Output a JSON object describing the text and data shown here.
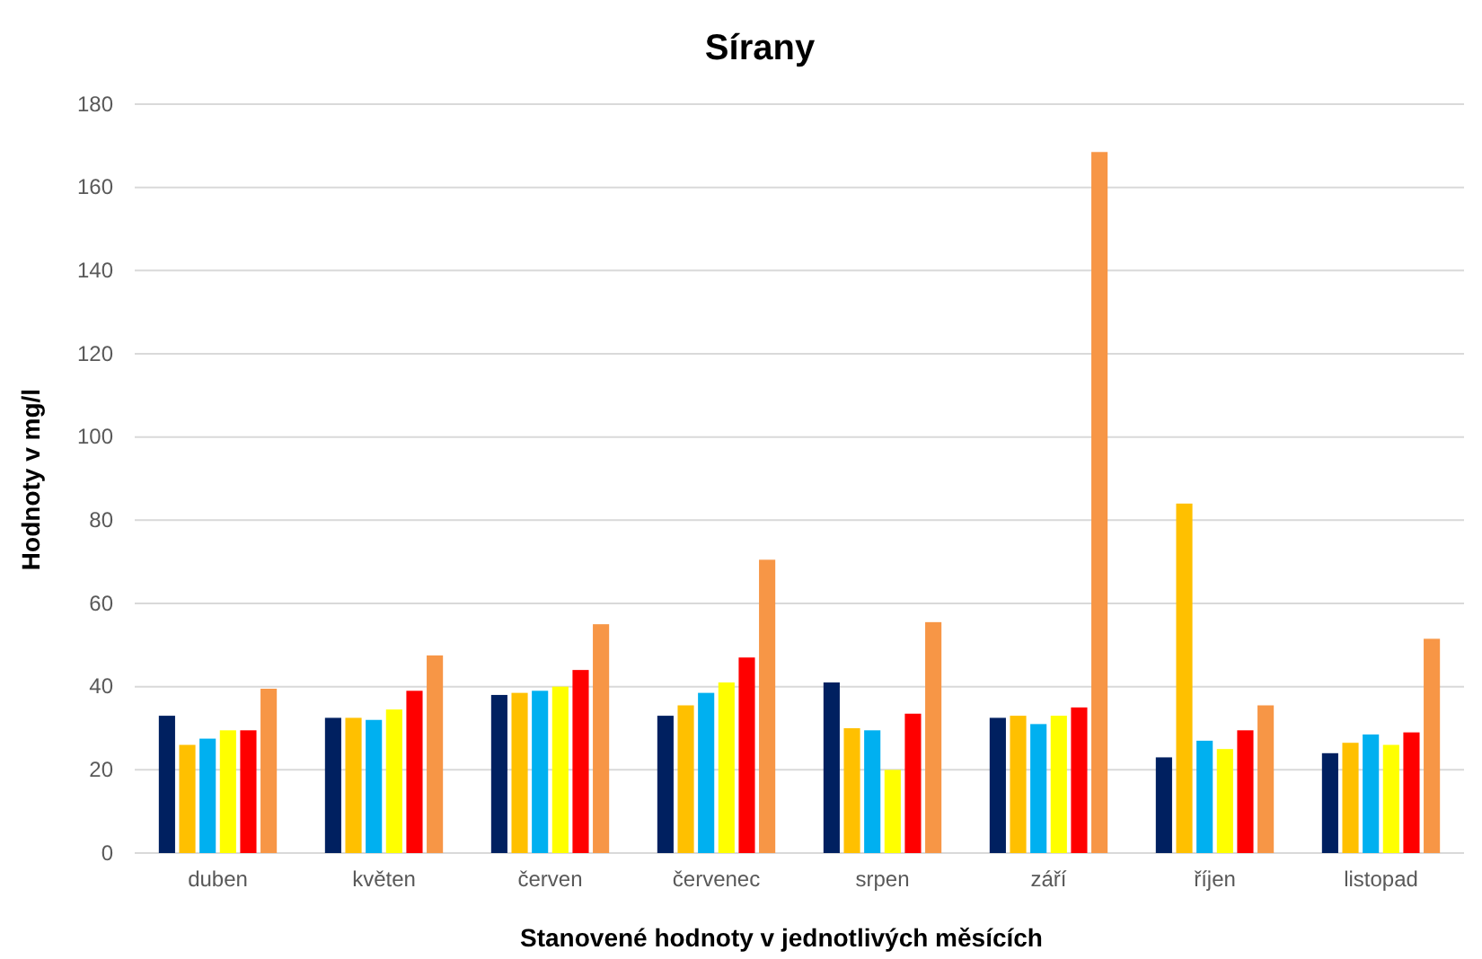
{
  "chart_data": {
    "type": "bar",
    "title": "Sírany",
    "xlabel": "Stanovené hodnoty v jednotlivých měsících",
    "ylabel": "Hodnoty v mg/l",
    "categories": [
      "duben",
      "květen",
      "červen",
      "červenec",
      "srpen",
      "září",
      "říjen",
      "listopad"
    ],
    "series": [
      {
        "color": "#002060",
        "values": [
          33,
          32.5,
          38,
          33,
          41,
          32.5,
          23,
          24
        ]
      },
      {
        "color": "#ffc000",
        "values": [
          26,
          32.5,
          38.5,
          35.5,
          30,
          33,
          84,
          26.5
        ]
      },
      {
        "color": "#00b0f0",
        "values": [
          27.5,
          32,
          39,
          38.5,
          29.5,
          31,
          27,
          28.5
        ]
      },
      {
        "color": "#ffff00",
        "values": [
          29.5,
          34.5,
          40,
          41,
          20,
          33,
          25,
          26
        ]
      },
      {
        "color": "#ff0000",
        "values": [
          29.5,
          39,
          44,
          47,
          33.5,
          35,
          29.5,
          29
        ]
      },
      {
        "color": "#f79646",
        "values": [
          39.5,
          47.5,
          55,
          70.5,
          55.5,
          168.5,
          35.5,
          51.5
        ]
      }
    ],
    "ylim": [
      0,
      180
    ],
    "yticks": [
      0,
      20,
      40,
      60,
      80,
      100,
      120,
      140,
      160,
      180
    ],
    "grid": "y",
    "legend": false
  }
}
